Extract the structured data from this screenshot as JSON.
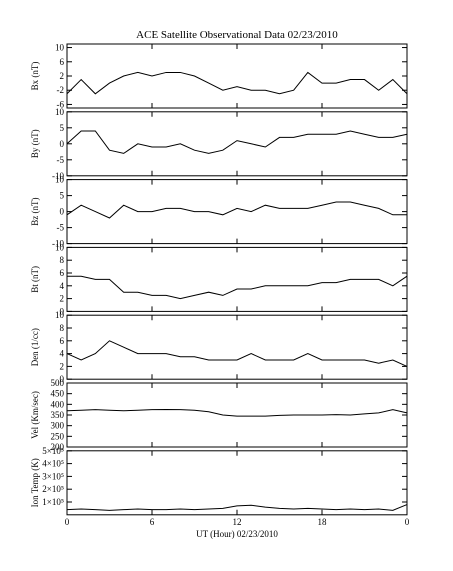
{
  "chart_data": [
    {
      "type": "line",
      "title": "ACE Satellite Observational Data   02/23/2010",
      "y_label": "Bx (nT)",
      "color": "#000000",
      "x": [
        0,
        1,
        2,
        3,
        4,
        5,
        6,
        7,
        8,
        9,
        10,
        11,
        12,
        13,
        14,
        15,
        16,
        17,
        18,
        19,
        20,
        21,
        22,
        23,
        24
      ],
      "xlim": [
        0,
        24
      ],
      "values": [
        -3,
        1,
        -3,
        0,
        2,
        3,
        2,
        3,
        3,
        2,
        0,
        -2,
        -1,
        -2,
        -2,
        -3,
        -2,
        3,
        0,
        0,
        1,
        1,
        -2,
        1,
        -3
      ],
      "ylim": [
        -7,
        11
      ],
      "yticks": [
        -6,
        -2,
        2,
        6,
        10
      ]
    },
    {
      "type": "line",
      "y_label": "By (nT)",
      "color": "#000000",
      "x": [
        0,
        1,
        2,
        3,
        4,
        5,
        6,
        7,
        8,
        9,
        10,
        11,
        12,
        13,
        14,
        15,
        16,
        17,
        18,
        19,
        20,
        21,
        22,
        23,
        24
      ],
      "xlim": [
        0,
        24
      ],
      "values": [
        0,
        4,
        4,
        -2,
        -3,
        0,
        -1,
        -1,
        0,
        -2,
        -3,
        -2,
        1,
        0,
        -1,
        2,
        2,
        3,
        3,
        3,
        4,
        3,
        2,
        2,
        3
      ],
      "ylim": [
        -10,
        10
      ],
      "yticks": [
        -10,
        -5,
        0,
        5,
        10
      ]
    },
    {
      "type": "line",
      "y_label": "Bz (nT)",
      "color": "#000000",
      "x": [
        0,
        1,
        2,
        3,
        4,
        5,
        6,
        7,
        8,
        9,
        10,
        11,
        12,
        13,
        14,
        15,
        16,
        17,
        18,
        19,
        20,
        21,
        22,
        23,
        24
      ],
      "xlim": [
        0,
        24
      ],
      "values": [
        -1,
        2,
        0,
        -2,
        2,
        0,
        0,
        1,
        1,
        0,
        0,
        -1,
        1,
        0,
        2,
        1,
        1,
        1,
        2,
        3,
        3,
        2,
        1,
        -1,
        -1
      ],
      "ylim": [
        -10,
        10
      ],
      "yticks": [
        -10,
        -5,
        0,
        5,
        10
      ]
    },
    {
      "type": "line",
      "y_label": "Bt (nT)",
      "color": "#000000",
      "x": [
        0,
        1,
        2,
        3,
        4,
        5,
        6,
        7,
        8,
        9,
        10,
        11,
        12,
        13,
        14,
        15,
        16,
        17,
        18,
        19,
        20,
        21,
        22,
        23,
        24
      ],
      "xlim": [
        0,
        24
      ],
      "values": [
        5.5,
        5.5,
        5,
        5,
        3,
        3,
        2.5,
        2.5,
        2,
        2.5,
        3,
        2.5,
        3.5,
        3.5,
        4,
        4,
        4,
        4,
        4.5,
        4.5,
        5,
        5,
        5,
        4,
        5.5
      ],
      "ylim": [
        0,
        10
      ],
      "yticks": [
        0,
        2,
        4,
        6,
        8,
        10
      ]
    },
    {
      "type": "line",
      "y_label": "Den (1/cc)",
      "color": "#000000",
      "x": [
        0,
        1,
        2,
        3,
        4,
        5,
        6,
        7,
        8,
        9,
        10,
        11,
        12,
        13,
        14,
        15,
        16,
        17,
        18,
        19,
        20,
        21,
        22,
        23,
        24
      ],
      "xlim": [
        0,
        24
      ],
      "values": [
        4,
        3,
        4,
        6,
        5,
        4,
        4,
        4,
        3.5,
        3.5,
        3,
        3,
        3,
        4,
        3,
        3,
        3,
        4,
        3,
        3,
        3,
        3,
        2.5,
        3,
        2
      ],
      "ylim": [
        0,
        10
      ],
      "yticks": [
        0,
        2,
        4,
        6,
        8,
        10
      ]
    },
    {
      "type": "line",
      "y_label": "Vel (Km/sec)",
      "color": "#000000",
      "x": [
        0,
        1,
        2,
        3,
        4,
        5,
        6,
        7,
        8,
        9,
        10,
        11,
        12,
        13,
        14,
        15,
        16,
        17,
        18,
        19,
        20,
        21,
        22,
        23,
        24
      ],
      "xlim": [
        0,
        24
      ],
      "values": [
        370,
        372,
        375,
        372,
        370,
        372,
        375,
        376,
        375,
        372,
        365,
        350,
        345,
        345,
        345,
        348,
        350,
        350,
        350,
        352,
        350,
        355,
        360,
        375,
        360
      ],
      "ylim": [
        200,
        500
      ],
      "yticks": [
        200,
        250,
        300,
        350,
        400,
        450,
        500
      ]
    },
    {
      "type": "line",
      "y_label": "Ion Temp (K)",
      "x_label": "UT (Hour)   02/23/2010",
      "color": "#000000",
      "x": [
        0,
        1,
        2,
        3,
        4,
        5,
        6,
        7,
        8,
        9,
        10,
        11,
        12,
        13,
        14,
        15,
        16,
        17,
        18,
        19,
        20,
        21,
        22,
        23,
        24
      ],
      "xlim": [
        0,
        24
      ],
      "values": [
        40000,
        45000,
        40000,
        35000,
        40000,
        45000,
        40000,
        40000,
        45000,
        40000,
        45000,
        50000,
        70000,
        75000,
        60000,
        50000,
        45000,
        50000,
        45000,
        40000,
        45000,
        40000,
        45000,
        35000,
        80000
      ],
      "ylim": [
        0,
        500000
      ],
      "yticks": [
        {
          "value": 100000,
          "label": "1×10⁵"
        },
        {
          "value": 200000,
          "label": "2×10⁵"
        },
        {
          "value": 300000,
          "label": "3×10⁵"
        },
        {
          "value": 400000,
          "label": "4×10⁵"
        },
        {
          "value": 500000,
          "label": "5×10⁵"
        }
      ],
      "xticks": [
        {
          "value": 0,
          "label": "0"
        },
        6,
        12,
        18,
        {
          "value": 24,
          "label": "0"
        }
      ]
    }
  ]
}
